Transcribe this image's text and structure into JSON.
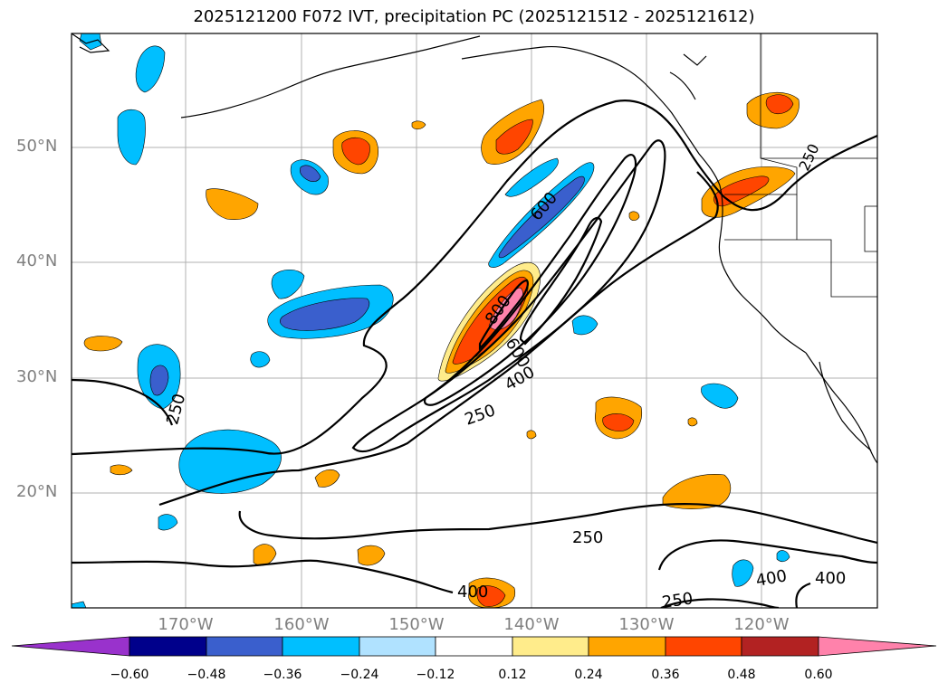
{
  "title": "2025121200 F072 IVT, precipitation PC (2025121512 - 2025121612)",
  "lat_labels": [
    "50°N",
    "40°N",
    "30°N",
    "20°N"
  ],
  "lon_labels": [
    "170°W",
    "160°W",
    "150°W",
    "140°W",
    "130°W",
    "120°W"
  ],
  "contour_labels": [
    "250",
    "250",
    "250",
    "250",
    "400",
    "400",
    "400",
    "400",
    "600",
    "800",
    "600",
    "250"
  ],
  "colorbar": {
    "ticks": [
      "−0.60",
      "−0.48",
      "−0.36",
      "−0.24",
      "−0.12",
      "0.12",
      "0.24",
      "0.36",
      "0.48",
      "0.60"
    ],
    "colors": [
      "#9932cc",
      "#00008b",
      "#3a5fcd",
      "#00bfff",
      "#b0e2ff",
      "#ffffff",
      "#ffec8b",
      "#ffa500",
      "#ff4500",
      "#b22222",
      "#ff82ab"
    ]
  }
}
